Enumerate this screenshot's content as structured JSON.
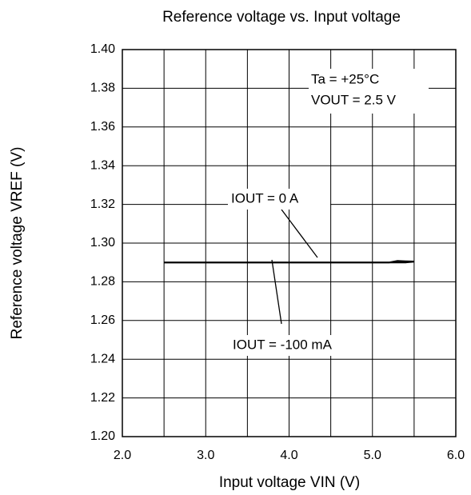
{
  "chart_data": {
    "type": "line",
    "title": "Reference voltage vs. Input voltage",
    "x_label": "Input voltage VIN (V)",
    "y_label": "Reference voltage VREF (V)",
    "xlim": [
      2,
      6
    ],
    "ylim": [
      1.2,
      1.4
    ],
    "xticks": [
      {
        "value": 2,
        "label": "2.0"
      },
      {
        "value": 3,
        "label": "3.0"
      },
      {
        "value": 4,
        "label": "4.0"
      },
      {
        "value": 5,
        "label": "5.0"
      },
      {
        "value": 6,
        "label": "6.0"
      }
    ],
    "x_minor_grid": [
      2.5,
      3.5,
      4.5,
      5.5
    ],
    "yticks": [
      {
        "value": 1.2,
        "label": "1.20"
      },
      {
        "value": 1.22,
        "label": "1.22"
      },
      {
        "value": 1.24,
        "label": "1.24"
      },
      {
        "value": 1.26,
        "label": "1.26"
      },
      {
        "value": 1.28,
        "label": "1.28"
      },
      {
        "value": 1.3,
        "label": "1.30"
      },
      {
        "value": 1.32,
        "label": "1.32"
      },
      {
        "value": 1.34,
        "label": "1.34"
      },
      {
        "value": 1.36,
        "label": "1.36"
      },
      {
        "value": 1.38,
        "label": "1.38"
      },
      {
        "value": 1.4,
        "label": "1.40"
      }
    ],
    "grid": true,
    "conditions": [
      "Ta = +25°C",
      "VOUT = 2.5 V"
    ],
    "x": [
      2.5,
      3.0,
      3.5,
      4.0,
      4.5,
      5.0,
      5.2,
      5.3,
      5.4,
      5.5
    ],
    "series": [
      {
        "name": "IOUT = 0 A",
        "color": "#000000",
        "values": [
          1.29,
          1.29,
          1.29,
          1.29,
          1.29,
          1.29,
          1.29,
          1.2908,
          1.2906,
          1.2905
        ]
      },
      {
        "name": "IOUT = -100 mA",
        "color": "#000000",
        "values": [
          1.29,
          1.29,
          1.29,
          1.29,
          1.29,
          1.29,
          1.29,
          1.29,
          1.29,
          1.2904
        ]
      }
    ]
  }
}
